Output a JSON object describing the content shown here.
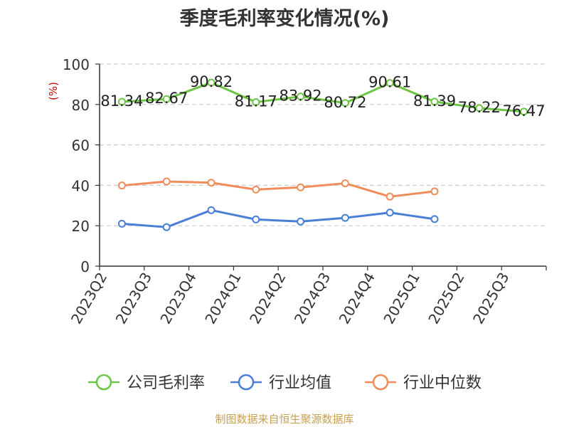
{
  "title": "季度毛利率变化情况(%)",
  "source": "制图数据来自恒生聚源数据库",
  "chart_data": {
    "type": "line",
    "ylabel": "(%)",
    "ylim": [
      0,
      100
    ],
    "yticks": [
      0,
      20,
      40,
      60,
      80,
      100
    ],
    "grid": true,
    "legend_position": "bottom",
    "categories": [
      "2023Q2",
      "2023Q3",
      "2023Q4",
      "2024Q1",
      "2024Q2",
      "2024Q3",
      "2024Q4",
      "2025Q1",
      "2025Q2",
      "2025Q3"
    ],
    "series": [
      {
        "name": "公司毛利率",
        "color": "#6cc644",
        "values": [
          81.34,
          82.67,
          90.82,
          81.17,
          83.92,
          80.72,
          90.61,
          81.39,
          78.22,
          76.47
        ],
        "labels": [
          "81.34",
          "82.67",
          "90.82",
          "81.17",
          "83.92",
          "80.72",
          "90.61",
          "81.39",
          "78.22",
          "76.47"
        ]
      },
      {
        "name": "行业均值",
        "color": "#4a7fd6",
        "values": [
          21.0,
          19.3,
          27.7,
          23.1,
          22.1,
          23.9,
          26.5,
          23.3,
          null,
          null
        ]
      },
      {
        "name": "行业中位数",
        "color": "#f08c5a",
        "values": [
          39.9,
          41.9,
          41.3,
          37.9,
          39.0,
          41.0,
          34.4,
          37.0,
          null,
          null
        ]
      }
    ]
  }
}
